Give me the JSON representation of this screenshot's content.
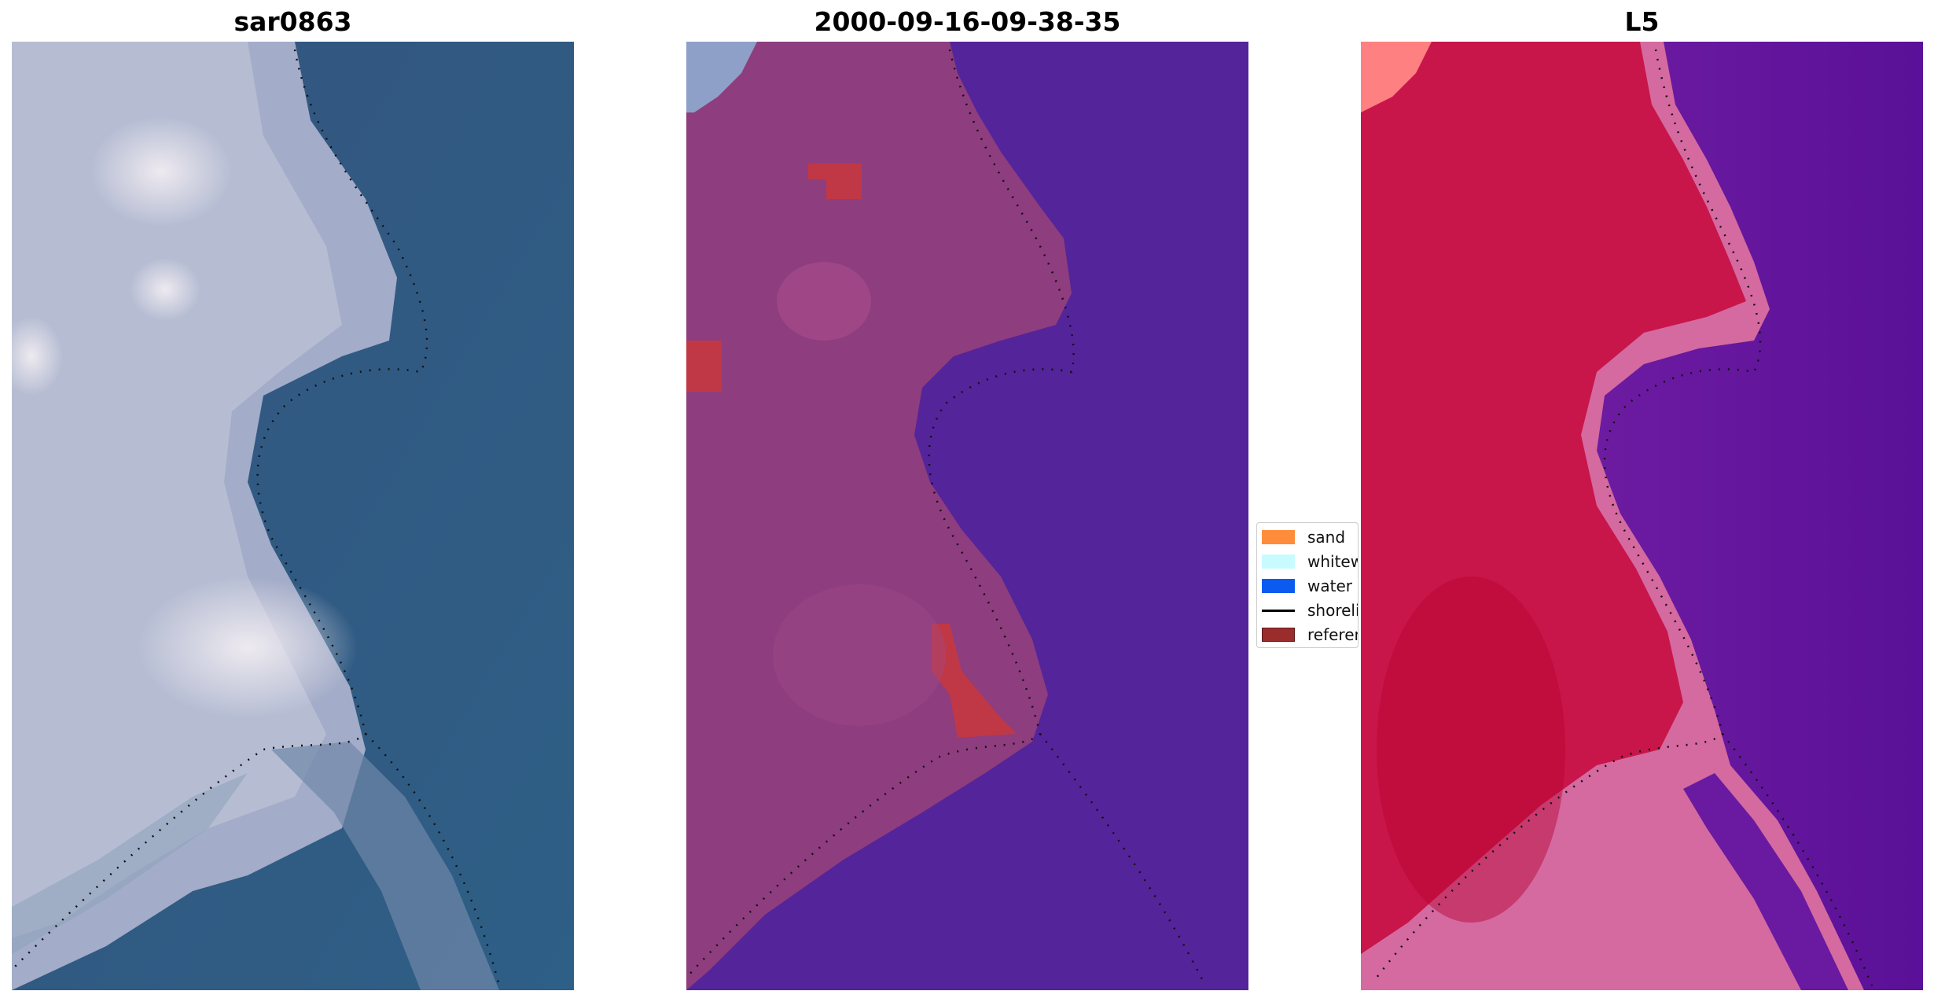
{
  "panels": [
    {
      "title": "sar0863",
      "kind": "rgb-image"
    },
    {
      "title": "2000-09-16-09-38-35",
      "kind": "classification"
    },
    {
      "title": "L5",
      "kind": "index-map"
    }
  ],
  "legend": {
    "items": [
      {
        "label": "sand",
        "color": "#ff8c3a",
        "shape": "patch"
      },
      {
        "label": "whitewater",
        "color": "#c8fbff",
        "shape": "patch"
      },
      {
        "label": "water",
        "color": "#0b5bf0",
        "shape": "patch"
      },
      {
        "label": "shoreline",
        "color": "#000000",
        "shape": "line"
      },
      {
        "label": "reference",
        "color": "#9b2c2c",
        "shape": "patch"
      }
    ]
  },
  "colors": {
    "sea_blue": "#2f5582",
    "sand_grey": "#b9c0d6",
    "class_land": "#8e3d7e",
    "class_water": "#54249a",
    "class_highlight": "#c03845",
    "index_red": "#c8164a",
    "index_purple": "#6a1aa0",
    "index_pink": "#d86aa0",
    "shoreline_dots": "#111111"
  }
}
